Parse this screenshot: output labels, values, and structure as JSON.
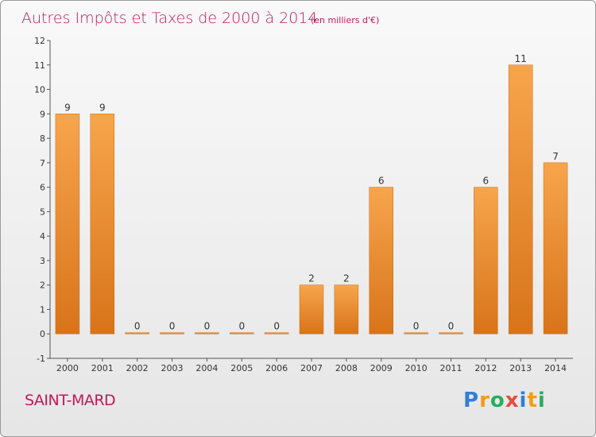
{
  "chart_data": {
    "type": "bar",
    "title": "Autres Impôts et Taxes de 2000 à 2014",
    "unit_note": "(en milliers d'€)",
    "categories": [
      "2000",
      "2001",
      "2002",
      "2003",
      "2004",
      "2005",
      "2006",
      "2007",
      "2008",
      "2009",
      "2010",
      "2011",
      "2012",
      "2013",
      "2014"
    ],
    "values": [
      9,
      9,
      0,
      0,
      0,
      0,
      0,
      2,
      2,
      6,
      0,
      0,
      6,
      11,
      7
    ],
    "ylim": [
      -1,
      12
    ],
    "yticks": [
      "-1",
      "0",
      "1",
      "2",
      "3",
      "4",
      "5",
      "6",
      "7",
      "8",
      "9",
      "10",
      "11",
      "12"
    ],
    "grid": false,
    "bar_color": "#f0932e",
    "bar_color_dark": "#d8741a"
  },
  "commune": "SAINT-MARD",
  "brand": {
    "letters": [
      "P",
      "r",
      "o",
      "x",
      "i",
      "t",
      "i"
    ],
    "colors": [
      "#2f7fd6",
      "#f39c12",
      "#27ae60",
      "#e74c3c",
      "#2f7fd6",
      "#f39c12",
      "#27ae60"
    ]
  }
}
